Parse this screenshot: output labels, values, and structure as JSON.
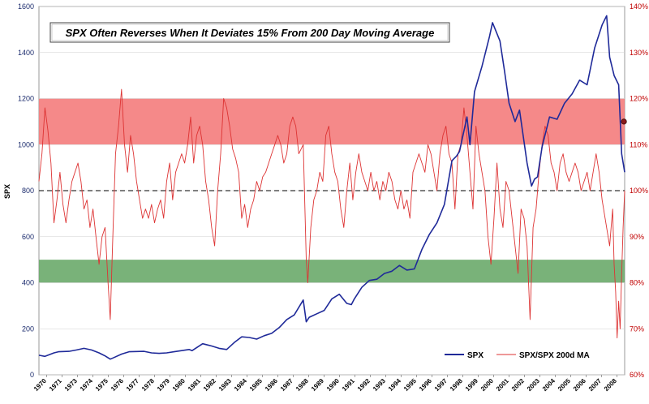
{
  "chart_data": {
    "type": "line",
    "title": "SPX Often Reverses When It Deviates 15% From 200 Day Moving Average",
    "xlabel": "",
    "ylabel": "SPX",
    "y2label": "",
    "xlim": [
      1970.0,
      2009.0
    ],
    "ylim": [
      0,
      1600
    ],
    "y2lim": [
      60,
      140
    ],
    "yticks": [
      "0",
      "200",
      "400",
      "600",
      "800",
      "1000",
      "1200",
      "1400",
      "1600"
    ],
    "y2ticks": [
      "60%",
      "70%",
      "80%",
      "90%",
      "100%",
      "110%",
      "120%",
      "130%",
      "140%"
    ],
    "xticks": [
      "1970",
      "1971",
      "1973",
      "1974",
      "1975",
      "1976",
      "1977",
      "1978",
      "1979",
      "1980",
      "1981",
      "1982",
      "1983",
      "1984",
      "1985",
      "1986",
      "1987",
      "1988",
      "1989",
      "1990",
      "1991",
      "1992",
      "1993",
      "1994",
      "1995",
      "1996",
      "1997",
      "1998",
      "1999",
      "2000",
      "2001",
      "2002",
      "2003",
      "2004",
      "2005",
      "2006",
      "2007",
      "2008"
    ],
    "grid": true,
    "legend_position": "bottom-right",
    "colors": {
      "spx": "#1f2a99",
      "ratio": "#dd3333",
      "band_high": "#f47c7c",
      "band_low": "#6aaa6a",
      "ref_line": "#333333"
    },
    "bands": [
      {
        "axis": "right",
        "from": 110,
        "to": 120,
        "color": "#f47c7c"
      },
      {
        "axis": "right",
        "from": 80,
        "to": 85,
        "color": "#6aaa6a"
      }
    ],
    "reference_line": {
      "axis": "right",
      "value": 100
    },
    "series": [
      {
        "name": "SPX",
        "axis": "left",
        "x": [
          1970.0,
          1970.4,
          1971.0,
          1971.3,
          1972.0,
          1972.5,
          1973.0,
          1973.5,
          1974.0,
          1974.4,
          1974.75,
          1975.0,
          1975.5,
          1976.0,
          1977.0,
          1977.5,
          1978.0,
          1978.5,
          1979.0,
          1980.0,
          1980.2,
          1980.9,
          1981.5,
          1982.0,
          1982.5,
          1983.0,
          1983.5,
          1984.0,
          1984.5,
          1985.0,
          1985.5,
          1986.0,
          1986.5,
          1987.0,
          1987.6,
          1987.8,
          1988.0,
          1988.5,
          1989.0,
          1989.5,
          1990.0,
          1990.5,
          1990.8,
          1991.0,
          1991.5,
          1992.0,
          1992.5,
          1993.0,
          1993.5,
          1994.0,
          1994.5,
          1995.0,
          1995.5,
          1996.0,
          1996.5,
          1997.0,
          1997.5,
          1997.8,
          1998.0,
          1998.5,
          1998.7,
          1999.0,
          1999.5,
          2000.0,
          2000.2,
          2000.7,
          2001.0,
          2001.3,
          2001.7,
          2002.0,
          2002.5,
          2002.8,
          2003.0,
          2003.2,
          2003.5,
          2004.0,
          2004.5,
          2005.0,
          2005.5,
          2006.0,
          2006.5,
          2007.0,
          2007.5,
          2007.8,
          2008.0,
          2008.3,
          2008.6,
          2008.8,
          2009.0
        ],
        "values": [
          85,
          80,
          95,
          100,
          102,
          108,
          115,
          108,
          95,
          82,
          68,
          75,
          90,
          100,
          102,
          95,
          93,
          95,
          100,
          110,
          105,
          135,
          125,
          115,
          110,
          140,
          165,
          162,
          155,
          170,
          180,
          205,
          240,
          260,
          325,
          230,
          250,
          265,
          280,
          330,
          350,
          310,
          305,
          330,
          380,
          410,
          415,
          440,
          450,
          475,
          455,
          460,
          545,
          610,
          660,
          740,
          930,
          950,
          970,
          1120,
          1000,
          1230,
          1340,
          1470,
          1530,
          1450,
          1320,
          1180,
          1100,
          1150,
          920,
          820,
          850,
          860,
          990,
          1120,
          1110,
          1180,
          1220,
          1280,
          1260,
          1420,
          1520,
          1560,
          1380,
          1300,
          1260,
          960,
          880
        ]
      },
      {
        "name": "SPX/SPX 200d MA",
        "axis": "right",
        "x": [
          1970.0,
          1970.2,
          1970.4,
          1970.6,
          1970.8,
          1971.0,
          1971.2,
          1971.4,
          1971.6,
          1971.8,
          1972.0,
          1972.2,
          1972.4,
          1972.6,
          1972.8,
          1973.0,
          1973.2,
          1973.4,
          1973.6,
          1973.8,
          1974.0,
          1974.2,
          1974.4,
          1974.6,
          1974.75,
          1974.9,
          1975.1,
          1975.3,
          1975.5,
          1975.7,
          1975.9,
          1976.1,
          1976.3,
          1976.5,
          1976.7,
          1976.9,
          1977.1,
          1977.3,
          1977.5,
          1977.7,
          1977.9,
          1978.1,
          1978.3,
          1978.5,
          1978.7,
          1978.9,
          1979.1,
          1979.3,
          1979.5,
          1979.7,
          1979.9,
          1980.1,
          1980.3,
          1980.5,
          1980.7,
          1980.9,
          1981.1,
          1981.3,
          1981.5,
          1981.7,
          1981.9,
          1982.1,
          1982.3,
          1982.5,
          1982.7,
          1982.9,
          1983.1,
          1983.3,
          1983.5,
          1983.7,
          1983.9,
          1984.1,
          1984.3,
          1984.5,
          1984.7,
          1984.9,
          1985.1,
          1985.3,
          1985.5,
          1985.7,
          1985.9,
          1986.1,
          1986.3,
          1986.5,
          1986.7,
          1986.9,
          1987.1,
          1987.3,
          1987.6,
          1987.8,
          1987.9,
          1988.1,
          1988.3,
          1988.5,
          1988.7,
          1988.9,
          1989.1,
          1989.3,
          1989.5,
          1989.7,
          1989.9,
          1990.1,
          1990.3,
          1990.5,
          1990.7,
          1990.9,
          1991.1,
          1991.3,
          1991.5,
          1991.7,
          1991.9,
          1992.1,
          1992.3,
          1992.5,
          1992.7,
          1992.9,
          1993.1,
          1993.3,
          1993.5,
          1993.7,
          1993.9,
          1994.1,
          1994.3,
          1994.5,
          1994.7,
          1994.9,
          1995.1,
          1995.3,
          1995.5,
          1995.7,
          1995.9,
          1996.1,
          1996.3,
          1996.5,
          1996.7,
          1996.9,
          1997.1,
          1997.3,
          1997.5,
          1997.7,
          1997.9,
          1998.1,
          1998.3,
          1998.5,
          1998.7,
          1998.9,
          1999.1,
          1999.3,
          1999.5,
          1999.7,
          1999.9,
          2000.1,
          2000.3,
          2000.5,
          2000.7,
          2000.9,
          2001.1,
          2001.3,
          2001.5,
          2001.7,
          2001.9,
          2002.1,
          2002.3,
          2002.5,
          2002.7,
          2002.9,
          2003.1,
          2003.3,
          2003.5,
          2003.7,
          2003.9,
          2004.1,
          2004.3,
          2004.5,
          2004.7,
          2004.9,
          2005.1,
          2005.3,
          2005.5,
          2005.7,
          2005.9,
          2006.1,
          2006.3,
          2006.5,
          2006.7,
          2006.9,
          2007.1,
          2007.3,
          2007.5,
          2007.7,
          2007.9,
          2008.0,
          2008.1,
          2008.2,
          2008.3,
          2008.4,
          2008.5,
          2008.6,
          2008.7,
          2008.8,
          2008.9,
          2009.0
        ],
        "values": [
          102,
          108,
          118,
          113,
          106,
          93,
          98,
          104,
          97,
          93,
          98,
          102,
          104,
          106,
          102,
          96,
          98,
          92,
          96,
          90,
          84,
          90,
          92,
          80,
          72,
          88,
          108,
          114,
          122,
          110,
          104,
          112,
          108,
          102,
          98,
          94,
          96,
          94,
          97,
          93,
          96,
          98,
          94,
          102,
          106,
          98,
          104,
          106,
          108,
          106,
          110,
          116,
          106,
          112,
          114,
          110,
          102,
          98,
          92,
          88,
          100,
          108,
          120,
          118,
          114,
          109,
          107,
          104,
          94,
          97,
          92,
          96,
          98,
          102,
          100,
          103,
          104,
          106,
          108,
          110,
          112,
          110,
          106,
          108,
          114,
          116,
          114,
          108,
          110,
          85,
          80,
          92,
          98,
          100,
          104,
          102,
          112,
          114,
          108,
          104,
          102,
          96,
          92,
          100,
          106,
          98,
          104,
          108,
          104,
          102,
          100,
          104,
          100,
          102,
          98,
          102,
          100,
          104,
          102,
          98,
          96,
          100,
          96,
          98,
          94,
          104,
          106,
          108,
          106,
          104,
          110,
          108,
          104,
          100,
          108,
          112,
          114,
          108,
          106,
          96,
          108,
          110,
          118,
          112,
          104,
          96,
          114,
          108,
          104,
          100,
          90,
          84,
          94,
          106,
          96,
          92,
          102,
          100,
          94,
          88,
          82,
          96,
          94,
          88,
          72,
          92,
          96,
          104,
          110,
          114,
          112,
          106,
          104,
          100,
          106,
          108,
          104,
          102,
          104,
          106,
          104,
          100,
          102,
          104,
          100,
          104,
          108,
          104,
          98,
          94,
          90,
          88,
          92,
          96,
          84,
          78,
          68,
          76,
          70,
          82,
          92,
          100
        ]
      }
    ],
    "highlight_point": {
      "series": "SPX/SPX 200d MA",
      "x": 2008.95,
      "y": 115
    }
  }
}
